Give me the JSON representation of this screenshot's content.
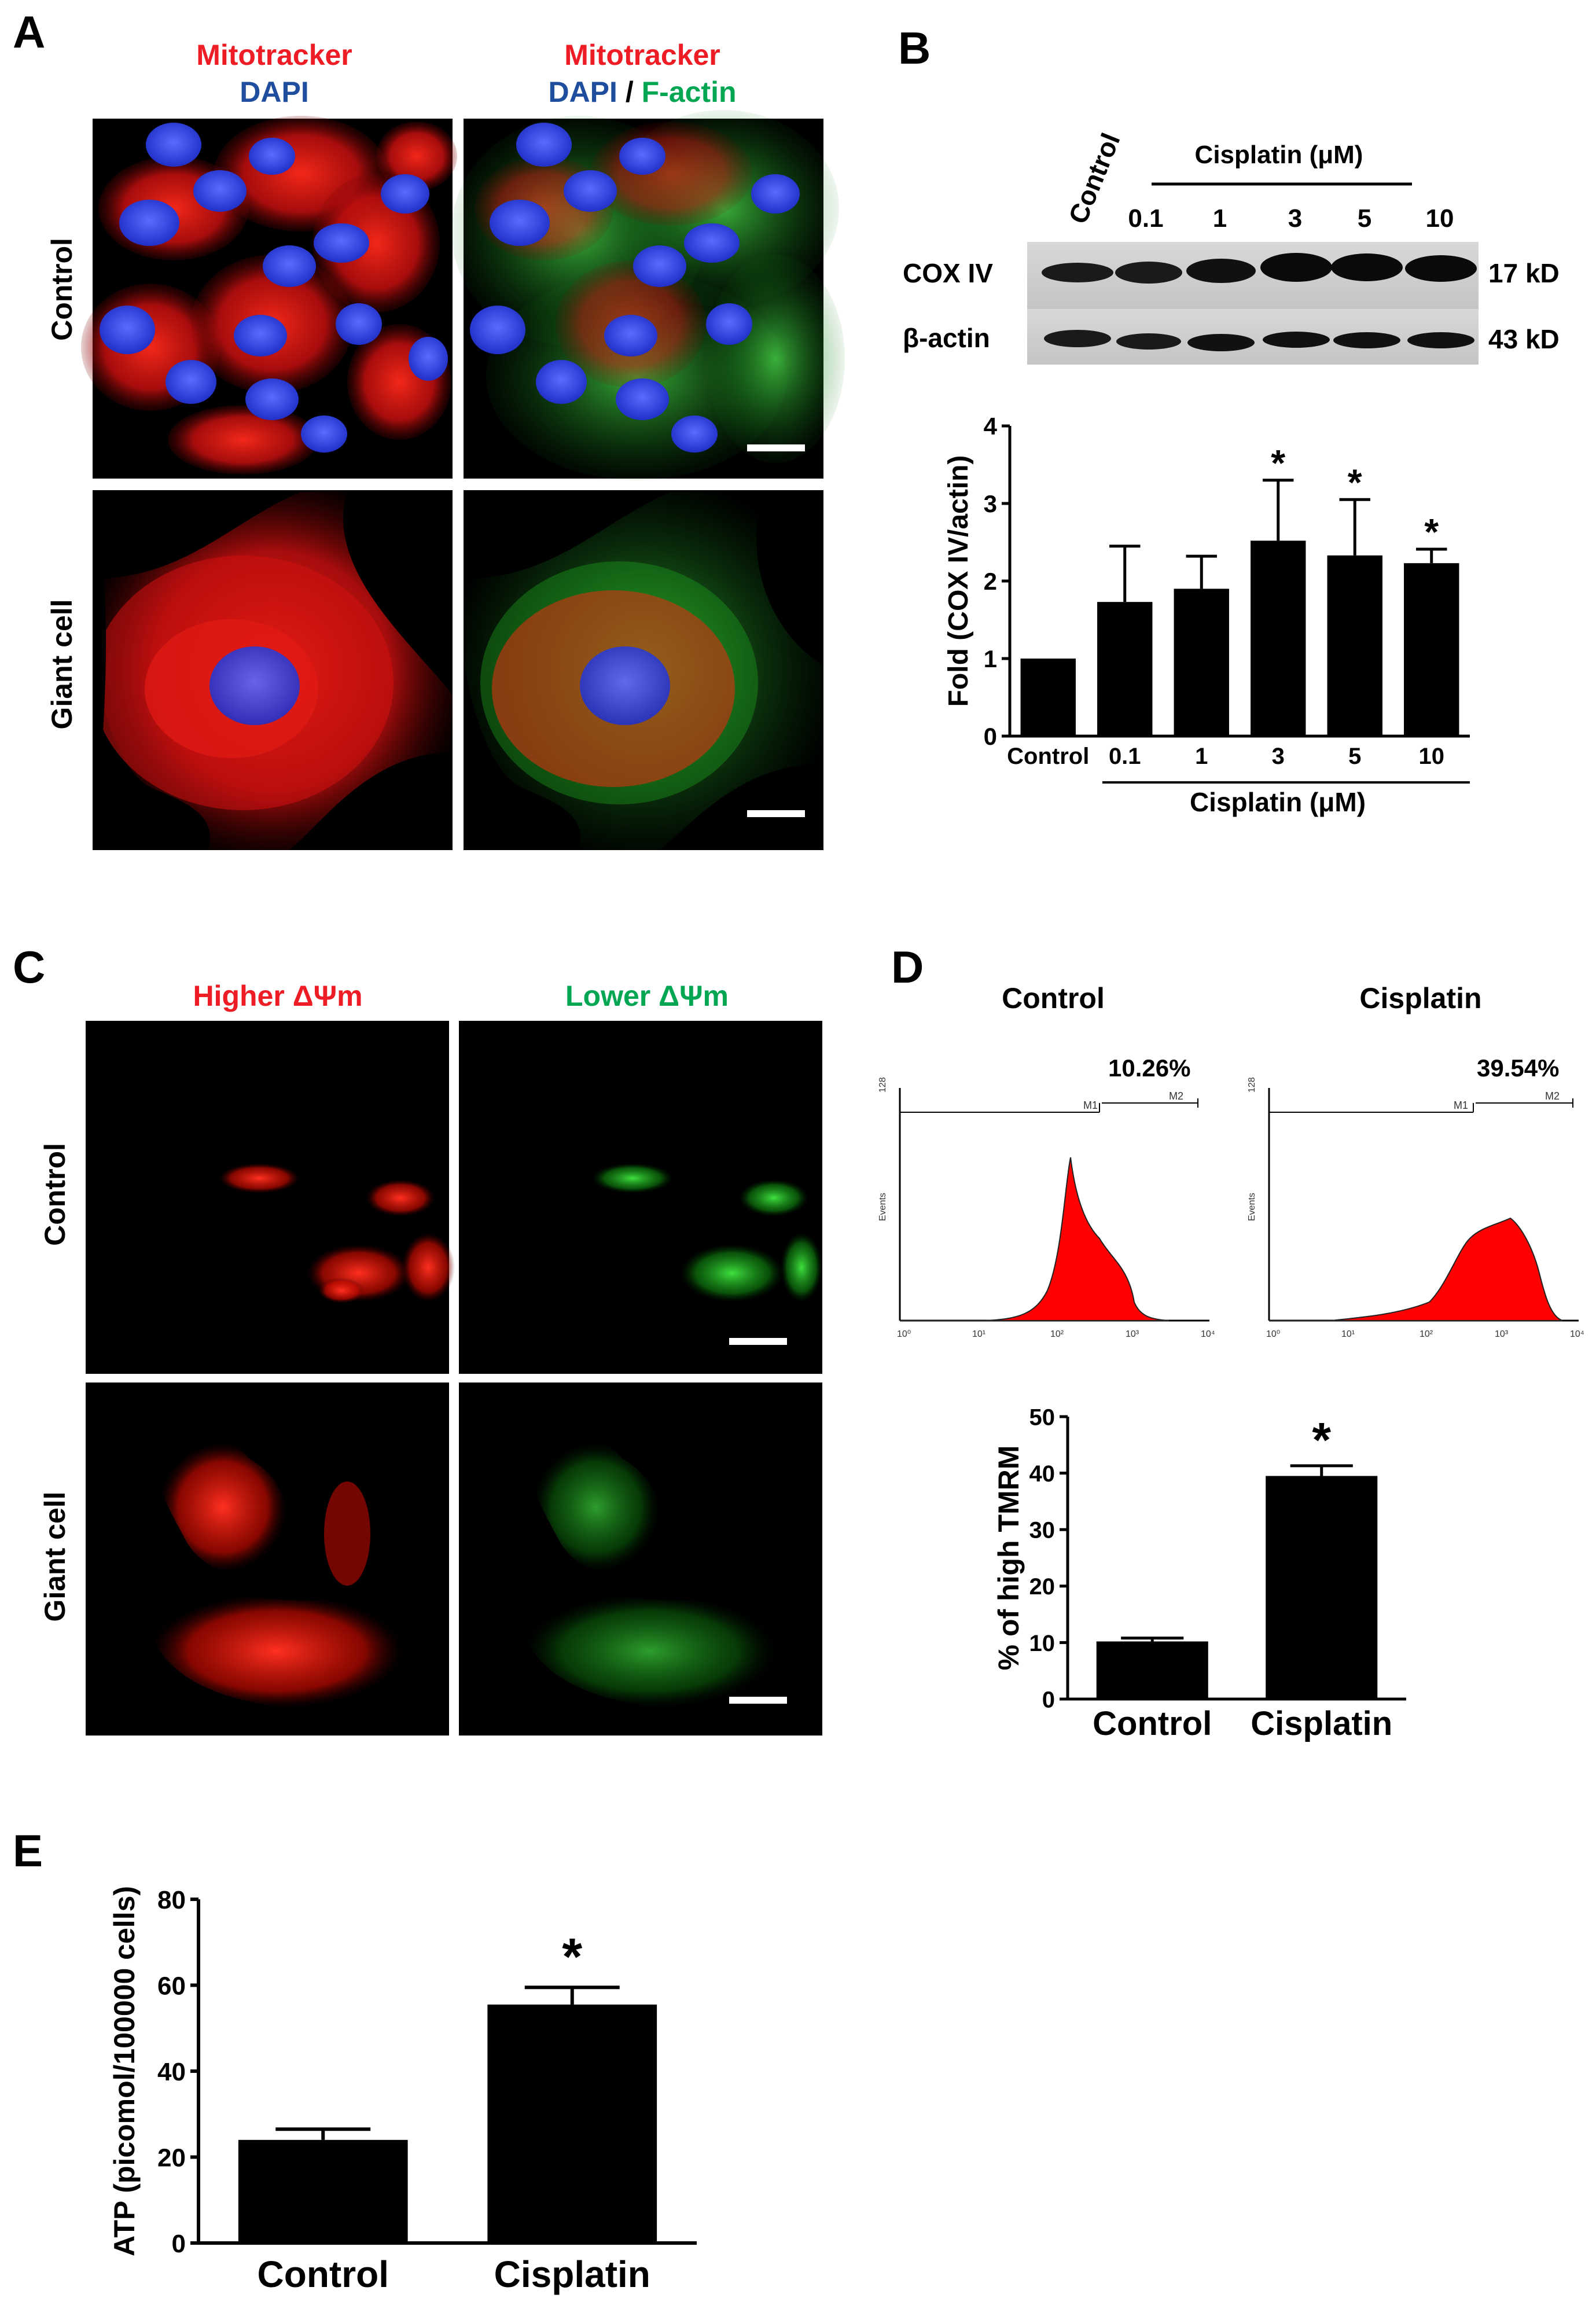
{
  "panels": {
    "A": {
      "letter": "A",
      "col1": {
        "line1": "Mitotracker",
        "line2": "DAPI"
      },
      "col2": {
        "line1": "Mitotracker",
        "dapi": "DAPI",
        "slash": " / ",
        "factin": "F-actin"
      },
      "row_labels": [
        "Control",
        "Giant cell"
      ]
    },
    "B": {
      "letter": "B",
      "blot": {
        "control_label": "Control",
        "group_label": "Cisplatin (μM)",
        "lanes": [
          "0.1",
          "1",
          "3",
          "5",
          "10"
        ],
        "rows": [
          {
            "name": "COX IV",
            "size": "17 kD"
          },
          {
            "name": "β-actin",
            "size": "43 kD"
          }
        ]
      }
    },
    "C": {
      "letter": "C",
      "col1": "Higher ΔΨm",
      "col2": "Lower ΔΨm",
      "row_labels": [
        "Control",
        "Giant cell"
      ]
    },
    "D": {
      "letter": "D",
      "hist_titles": [
        "Control",
        "Cisplatin"
      ],
      "hist_pcts": [
        "10.26%",
        "39.54%"
      ],
      "hist_markers": [
        "M1",
        "M2"
      ],
      "hist_ymax": "128",
      "hist_ylabel": "Events",
      "hist_xticks": [
        "10⁰",
        "10¹",
        "10²",
        "10³",
        "10⁴"
      ]
    },
    "E": {
      "letter": "E"
    }
  },
  "colors": {
    "red": "#ee1c25",
    "green": "#00a651",
    "blue": "#1f4e9e",
    "black": "#000000"
  },
  "chart_data": [
    {
      "id": "B",
      "type": "bar",
      "categories": [
        "Control",
        "0.1",
        "1",
        "3",
        "5",
        "10"
      ],
      "values": [
        1.0,
        1.73,
        1.9,
        2.52,
        2.33,
        2.23
      ],
      "errors": [
        0,
        0.72,
        0.42,
        0.78,
        0.72,
        0.18
      ],
      "significant": [
        false,
        false,
        false,
        true,
        true,
        true
      ],
      "sig_mark": "*",
      "ylabel": "Fold (COX IV/actin)",
      "group_label": "Cisplatin (μM)",
      "ylim": [
        0,
        4
      ],
      "yticks": [
        0,
        1,
        2,
        3,
        4
      ]
    },
    {
      "id": "D",
      "type": "bar",
      "categories": [
        "Control",
        "Cisplatin"
      ],
      "values": [
        10.2,
        39.5
      ],
      "errors": [
        0.6,
        1.8
      ],
      "significant": [
        false,
        true
      ],
      "sig_mark": "*",
      "ylabel": "% of high TMRM",
      "ylim": [
        0,
        50
      ],
      "yticks": [
        0,
        10,
        20,
        30,
        40,
        50
      ]
    },
    {
      "id": "E",
      "type": "bar",
      "categories": [
        "Control",
        "Cisplatin"
      ],
      "values": [
        24,
        55.5
      ],
      "errors": [
        2.5,
        4
      ],
      "significant": [
        false,
        true
      ],
      "sig_mark": "*",
      "ylabel": "ATP (picomol/100000 cells)",
      "ylim": [
        0,
        80
      ],
      "yticks": [
        0,
        20,
        40,
        60,
        80
      ]
    }
  ]
}
